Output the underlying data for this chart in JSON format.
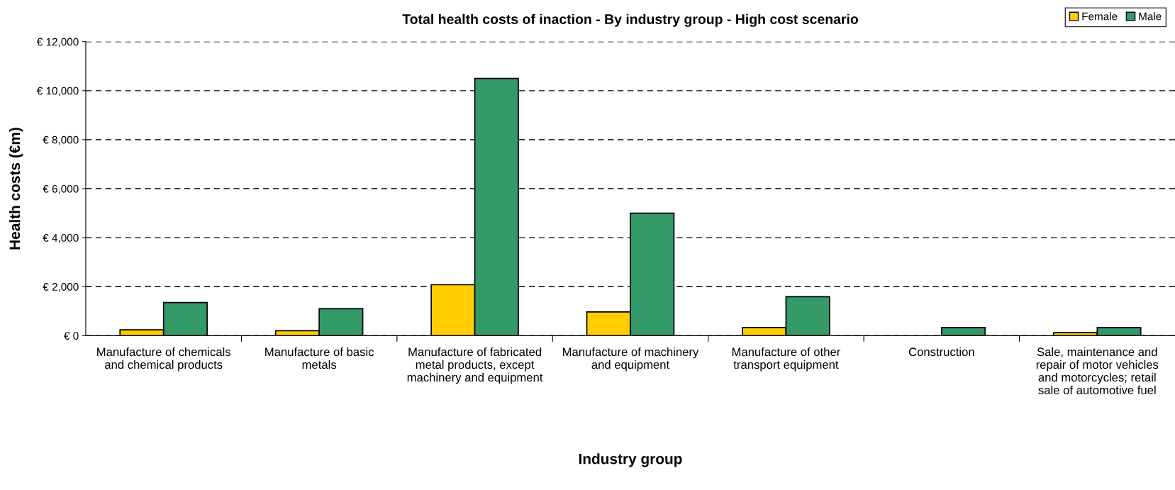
{
  "chart_data": {
    "type": "bar",
    "title": "Total health costs of inaction - By industry group - High cost scenario",
    "xlabel": "Industry group",
    "ylabel": "Health costs (€m)",
    "categories": [
      "Manufacture of chemicals and chemical products",
      "Manufacture of basic metals",
      "Manufacture of fabricated metal products, except machinery and equipment",
      "Manufacture of machinery and equipment",
      "Manufacture of other transport equipment",
      "Construction",
      "Sale, maintenance and repair of motor vehicles and motorcycles; retail sale of automotive fuel"
    ],
    "series": [
      {
        "name": "Female",
        "color": "#ffcc00",
        "values": [
          240,
          200,
          2080,
          970,
          330,
          null,
          120
        ]
      },
      {
        "name": "Male",
        "color": "#339966",
        "values": [
          1350,
          1100,
          10500,
          5000,
          1590,
          330,
          330
        ]
      }
    ],
    "ylim": [
      0,
      12000
    ],
    "yticks": [
      {
        "value": 0,
        "label": "€ 0"
      },
      {
        "value": 2000,
        "label": "€ 2,000"
      },
      {
        "value": 4000,
        "label": "€ 4,000"
      },
      {
        "value": 6000,
        "label": "€ 6,000"
      },
      {
        "value": 8000,
        "label": "€ 8,000"
      },
      {
        "value": 10000,
        "label": "€ 10,000"
      },
      {
        "value": 12000,
        "label": "€ 12,000"
      }
    ],
    "grid": "y",
    "legend": "top right"
  }
}
